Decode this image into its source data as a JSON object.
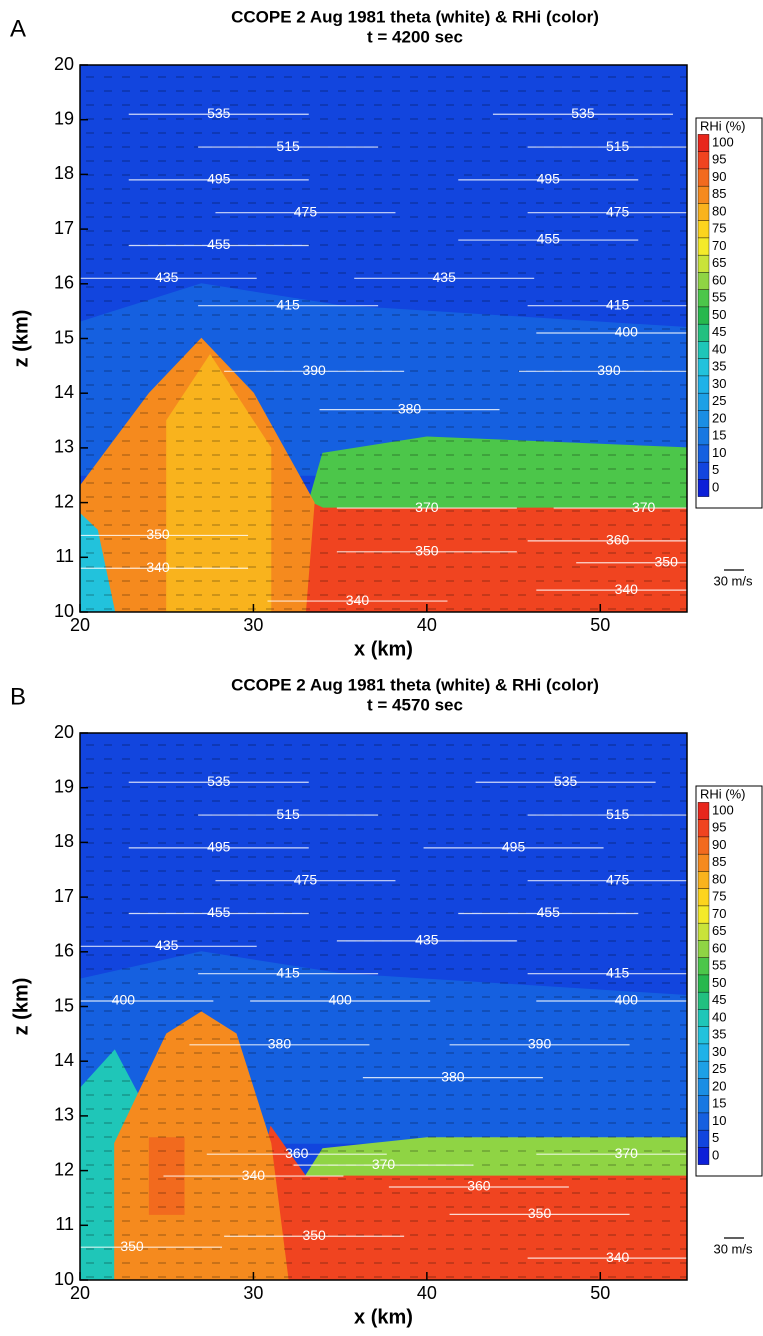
{
  "chart_data": [
    {
      "type": "contour",
      "panel": "A",
      "title": "CCOPE 2 Aug 1981 theta (white) & RHi (color)",
      "subtitle": "t = 4200 sec",
      "x_label": "x (km)",
      "y_label": "z (km)",
      "xlim": [
        20,
        55
      ],
      "ylim": [
        10,
        20
      ],
      "xticks": [
        20,
        30,
        40,
        50
      ],
      "yticks": [
        10,
        11,
        12,
        13,
        14,
        15,
        16,
        17,
        18,
        19,
        20
      ],
      "colorbar": {
        "title": "RHi (%)",
        "levels": [
          0,
          5,
          10,
          15,
          20,
          25,
          30,
          35,
          40,
          45,
          50,
          55,
          60,
          65,
          70,
          75,
          80,
          85,
          90,
          95,
          100
        ],
        "colors": [
          "#0d20d8",
          "#1245de",
          "#1560e0",
          "#1878e2",
          "#1b8ee4",
          "#1da0e6",
          "#1fb2e8",
          "#22c2dc",
          "#1fc6b8",
          "#22c080",
          "#27b84d",
          "#4cc64a",
          "#8fd444",
          "#c9e33a",
          "#f4ea2a",
          "#fcd41e",
          "#f9b31d",
          "#f58a1e",
          "#f26a1e",
          "#f04420",
          "#e8261c"
        ]
      },
      "rhi_regions": [
        {
          "rhi": 5,
          "points": [
            [
              20,
              10
            ],
            [
              55,
              10
            ],
            [
              55,
              20
            ],
            [
              20,
              20
            ]
          ]
        },
        {
          "rhi": 10,
          "points": [
            [
              20,
              12.5
            ],
            [
              55,
              12.5
            ],
            [
              55,
              15.2
            ],
            [
              35,
              15.6
            ],
            [
              27,
              16
            ],
            [
              20,
              15.3
            ]
          ]
        },
        {
          "rhi": 55,
          "points": [
            [
              33,
              11.8
            ],
            [
              55,
              11.8
            ],
            [
              55,
              13
            ],
            [
              40,
              13.2
            ],
            [
              34,
              12.9
            ]
          ]
        },
        {
          "rhi": 95,
          "points": [
            [
              31,
              10
            ],
            [
              55,
              10
            ],
            [
              55,
              11.9
            ],
            [
              34,
              11.9
            ],
            [
              32,
              12.2
            ]
          ]
        },
        {
          "rhi": 85,
          "points": [
            [
              20,
              10
            ],
            [
              33,
              10
            ],
            [
              33.5,
              12
            ],
            [
              30,
              14
            ],
            [
              27,
              15
            ],
            [
              24,
              14
            ],
            [
              20,
              12.3
            ]
          ]
        },
        {
          "rhi": 35,
          "points": [
            [
              20,
              10
            ],
            [
              22,
              10
            ],
            [
              21,
              11.5
            ],
            [
              20,
              11.8
            ]
          ]
        },
        {
          "rhi": 80,
          "points": [
            [
              25,
              10
            ],
            [
              31,
              10
            ],
            [
              31,
              13
            ],
            [
              27.5,
              14.7
            ],
            [
              25,
              13.5
            ]
          ]
        }
      ],
      "theta_labels": [
        {
          "x": 28,
          "z": 19.1,
          "value": 535
        },
        {
          "x": 32,
          "z": 18.5,
          "value": 515
        },
        {
          "x": 28,
          "z": 17.9,
          "value": 495
        },
        {
          "x": 33,
          "z": 17.3,
          "value": 475
        },
        {
          "x": 28,
          "z": 16.7,
          "value": 455
        },
        {
          "x": 25,
          "z": 16.1,
          "value": 435
        },
        {
          "x": 32,
          "z": 15.6,
          "value": 415
        },
        {
          "x": 33.5,
          "z": 14.4,
          "value": 390
        },
        {
          "x": 39,
          "z": 13.7,
          "value": 380
        },
        {
          "x": 49,
          "z": 19.1,
          "value": 535
        },
        {
          "x": 51,
          "z": 18.5,
          "value": 515
        },
        {
          "x": 47,
          "z": 17.9,
          "value": 495
        },
        {
          "x": 51,
          "z": 17.3,
          "value": 475
        },
        {
          "x": 47,
          "z": 16.8,
          "value": 455
        },
        {
          "x": 41,
          "z": 16.1,
          "value": 435
        },
        {
          "x": 51,
          "z": 15.6,
          "value": 415
        },
        {
          "x": 51.5,
          "z": 15.1,
          "value": 400
        },
        {
          "x": 50.5,
          "z": 14.4,
          "value": 390
        },
        {
          "x": 40,
          "z": 11.9,
          "value": 370
        },
        {
          "x": 52.5,
          "z": 11.9,
          "value": 370
        },
        {
          "x": 51,
          "z": 11.3,
          "value": 360
        },
        {
          "x": 40,
          "z": 11.1,
          "value": 350
        },
        {
          "x": 53.8,
          "z": 10.9,
          "value": 350
        },
        {
          "x": 51.5,
          "z": 10.4,
          "value": 340
        },
        {
          "x": 36,
          "z": 10.2,
          "value": 340
        },
        {
          "x": 24.5,
          "z": 11.4,
          "value": 350
        },
        {
          "x": 24.5,
          "z": 10.8,
          "value": 340
        }
      ],
      "vector_key": "30 m/s"
    },
    {
      "type": "contour",
      "panel": "B",
      "title": "CCOPE 2 Aug 1981 theta (white) & RHi (color)",
      "subtitle": "t = 4570 sec",
      "x_label": "x (km)",
      "y_label": "z (km)",
      "xlim": [
        20,
        55
      ],
      "ylim": [
        10,
        20
      ],
      "xticks": [
        20,
        30,
        40,
        50
      ],
      "yticks": [
        10,
        11,
        12,
        13,
        14,
        15,
        16,
        17,
        18,
        19,
        20
      ],
      "colorbar": {
        "title": "RHi (%)",
        "levels": [
          0,
          5,
          10,
          15,
          20,
          25,
          30,
          35,
          40,
          45,
          50,
          55,
          60,
          65,
          70,
          75,
          80,
          85,
          90,
          95,
          100
        ],
        "colors": [
          "#0d20d8",
          "#1245de",
          "#1560e0",
          "#1878e2",
          "#1b8ee4",
          "#1da0e6",
          "#1fb2e8",
          "#22c2dc",
          "#1fc6b8",
          "#22c080",
          "#27b84d",
          "#4cc64a",
          "#8fd444",
          "#c9e33a",
          "#f4ea2a",
          "#fcd41e",
          "#f9b31d",
          "#f58a1e",
          "#f26a1e",
          "#f04420",
          "#e8261c"
        ]
      },
      "rhi_regions": [
        {
          "rhi": 5,
          "points": [
            [
              20,
              10
            ],
            [
              55,
              10
            ],
            [
              55,
              20
            ],
            [
              20,
              20
            ]
          ]
        },
        {
          "rhi": 10,
          "points": [
            [
              20,
              12.5
            ],
            [
              55,
              12.5
            ],
            [
              55,
              15.2
            ],
            [
              35,
              15.6
            ],
            [
              27,
              16
            ],
            [
              20,
              15.5
            ]
          ]
        },
        {
          "rhi": 40,
          "points": [
            [
              20,
              10
            ],
            [
              25,
              10
            ],
            [
              24,
              13
            ],
            [
              22,
              14.2
            ],
            [
              20,
              13.5
            ]
          ]
        },
        {
          "rhi": 60,
          "points": [
            [
              33,
              11.9
            ],
            [
              55,
              11.9
            ],
            [
              55,
              12.6
            ],
            [
              40,
              12.6
            ],
            [
              34,
              12.4
            ]
          ]
        },
        {
          "rhi": 95,
          "points": [
            [
              29,
              10
            ],
            [
              55,
              10
            ],
            [
              55,
              11.9
            ],
            [
              33,
              11.9
            ],
            [
              31,
              12.8
            ]
          ]
        },
        {
          "rhi": 85,
          "points": [
            [
              22,
              10
            ],
            [
              32,
              10
            ],
            [
              31,
              12.5
            ],
            [
              29,
              14.5
            ],
            [
              27,
              14.9
            ],
            [
              25,
              14.5
            ],
            [
              22,
              12.5
            ]
          ]
        },
        {
          "rhi": 90,
          "points": [
            [
              24,
              11.2
            ],
            [
              26,
              11.2
            ],
            [
              26,
              12.6
            ],
            [
              24,
              12.6
            ]
          ]
        }
      ],
      "theta_labels": [
        {
          "x": 28,
          "z": 19.1,
          "value": 535
        },
        {
          "x": 32,
          "z": 18.5,
          "value": 515
        },
        {
          "x": 28,
          "z": 17.9,
          "value": 495
        },
        {
          "x": 33,
          "z": 17.3,
          "value": 475
        },
        {
          "x": 28,
          "z": 16.7,
          "value": 455
        },
        {
          "x": 25,
          "z": 16.1,
          "value": 435
        },
        {
          "x": 32,
          "z": 15.6,
          "value": 415
        },
        {
          "x": 22.5,
          "z": 15.1,
          "value": 400
        },
        {
          "x": 35,
          "z": 15.1,
          "value": 400
        },
        {
          "x": 31.5,
          "z": 14.3,
          "value": 380
        },
        {
          "x": 48,
          "z": 19.1,
          "value": 535
        },
        {
          "x": 51,
          "z": 18.5,
          "value": 515
        },
        {
          "x": 45,
          "z": 17.9,
          "value": 495
        },
        {
          "x": 51,
          "z": 17.3,
          "value": 475
        },
        {
          "x": 47,
          "z": 16.7,
          "value": 455
        },
        {
          "x": 40,
          "z": 16.2,
          "value": 435
        },
        {
          "x": 51,
          "z": 15.6,
          "value": 415
        },
        {
          "x": 51.5,
          "z": 15.1,
          "value": 400
        },
        {
          "x": 46.5,
          "z": 14.3,
          "value": 390
        },
        {
          "x": 41.5,
          "z": 13.7,
          "value": 380
        },
        {
          "x": 51.5,
          "z": 12.3,
          "value": 370
        },
        {
          "x": 37.5,
          "z": 12.1,
          "value": 370
        },
        {
          "x": 43,
          "z": 11.7,
          "value": 360
        },
        {
          "x": 32.5,
          "z": 12.3,
          "value": 360
        },
        {
          "x": 46.5,
          "z": 11.2,
          "value": 350
        },
        {
          "x": 33.5,
          "z": 10.8,
          "value": 350
        },
        {
          "x": 51,
          "z": 10.4,
          "value": 340
        },
        {
          "x": 30,
          "z": 11.9,
          "value": 340
        },
        {
          "x": 23,
          "z": 10.6,
          "value": 350
        }
      ],
      "vector_key": "30 m/s"
    }
  ]
}
